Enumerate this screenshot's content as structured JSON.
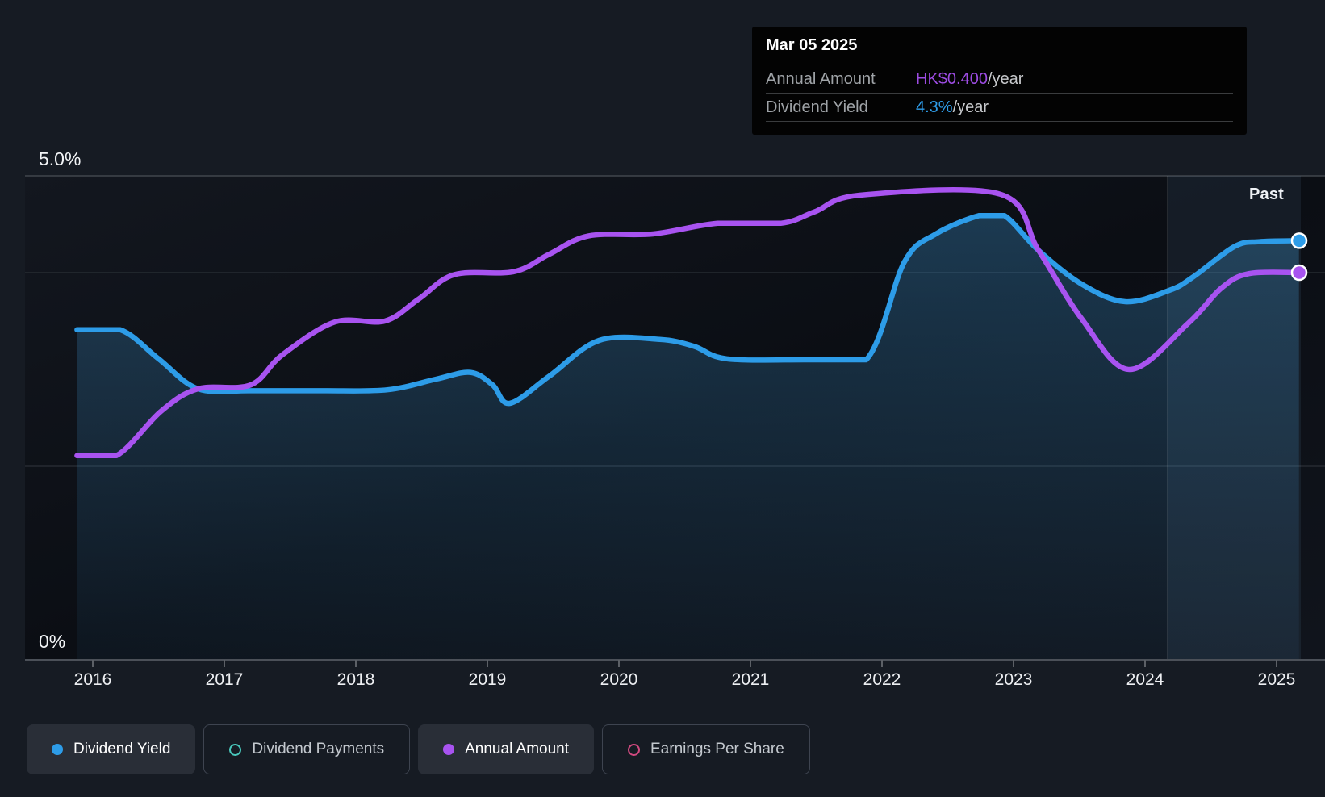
{
  "tooltip": {
    "date": "Mar 05 2025",
    "rows": [
      {
        "label": "Annual Amount",
        "value": "HK$0.400",
        "suffix": "/year",
        "value_color": "#9d4ce3"
      },
      {
        "label": "Dividend Yield",
        "value": "4.3%",
        "suffix": "/year",
        "value_color": "#2f9ce8"
      }
    ]
  },
  "past_label": "Past",
  "axis": {
    "y_top_label": "5.0%",
    "y_bottom_label": "0%",
    "x_labels": [
      "2016",
      "2017",
      "2018",
      "2019",
      "2020",
      "2021",
      "2022",
      "2023",
      "2024",
      "2025"
    ]
  },
  "legend": {
    "items": [
      {
        "label": "Dividend Yield",
        "color": "#2d9ce8",
        "active": true,
        "filled": true
      },
      {
        "label": "Dividend Payments",
        "color": "#49c8bc",
        "active": false,
        "filled": false
      },
      {
        "label": "Annual Amount",
        "color": "#a853f0",
        "active": true,
        "filled": true
      },
      {
        "label": "Earnings Per Share",
        "color": "#d1497f",
        "active": false,
        "filled": false
      }
    ]
  },
  "colors": {
    "background": "#161b23",
    "plot_top": "#13171f",
    "plot_bottom": "#0b0e14",
    "grid_bright": "#41464d",
    "grid_faint": "#2b3037",
    "axis_line": "#4b5058",
    "blue": "#2d9ce8",
    "purple": "#a853f0",
    "fill_blue": "rgba(58,140,196,0.34)",
    "past_band": "rgba(120,175,225,0.09)"
  },
  "chart_data": {
    "type": "line",
    "title": "Dividend history (tooltip at Mar 05 2025: Annual Amount HK$0.400/year, Dividend Yield 4.3%/year)",
    "x_range": [
      2015.88,
      2025.18
    ],
    "x_tick_years": [
      2016,
      2017,
      2018,
      2019,
      2020,
      2021,
      2022,
      2023,
      2024,
      2025
    ],
    "yield_axis": {
      "label_max": "5.0%",
      "label_min": "0%",
      "ylim_pct": [
        0,
        5.0
      ],
      "gridlines_pct": [
        5.0,
        4.0,
        2.0
      ]
    },
    "amount_axis": {
      "unit": "HK$",
      "ylim": [
        0,
        0.5
      ]
    },
    "past_band_years": [
      2024.17,
      2025.18
    ],
    "legend_position": "bottom",
    "series": [
      {
        "name": "Dividend Yield",
        "axis": "yield",
        "unit": "%",
        "color": "#2d9ce8",
        "fill": true,
        "endpoint_dot": true,
        "points": [
          [
            2015.88,
            3.41
          ],
          [
            2016.21,
            3.41
          ],
          [
            2016.5,
            3.11
          ],
          [
            2016.8,
            2.8
          ],
          [
            2017.2,
            2.78
          ],
          [
            2017.75,
            2.78
          ],
          [
            2018.24,
            2.79
          ],
          [
            2018.61,
            2.9
          ],
          [
            2018.87,
            2.97
          ],
          [
            2019.04,
            2.84
          ],
          [
            2019.17,
            2.65
          ],
          [
            2019.47,
            2.93
          ],
          [
            2019.85,
            3.3
          ],
          [
            2020.31,
            3.31
          ],
          [
            2020.57,
            3.24
          ],
          [
            2020.82,
            3.11
          ],
          [
            2021.43,
            3.1
          ],
          [
            2021.88,
            3.1
          ],
          [
            2022.17,
            4.11
          ],
          [
            2022.41,
            4.4
          ],
          [
            2022.74,
            4.59
          ],
          [
            2022.93,
            4.59
          ],
          [
            2023.19,
            4.23
          ],
          [
            2023.52,
            3.88
          ],
          [
            2023.85,
            3.7
          ],
          [
            2024.19,
            3.82
          ],
          [
            2024.37,
            3.96
          ],
          [
            2024.68,
            4.27
          ],
          [
            2024.87,
            4.32
          ],
          [
            2025.17,
            4.33
          ]
        ]
      },
      {
        "name": "Annual Amount",
        "axis": "amount",
        "unit": "HK$/year",
        "color": "#a853f0",
        "fill": false,
        "endpoint_dot": true,
        "points": [
          [
            2015.88,
            0.211
          ],
          [
            2016.18,
            0.211
          ],
          [
            2016.52,
            0.257
          ],
          [
            2016.8,
            0.28
          ],
          [
            2017.2,
            0.284
          ],
          [
            2017.44,
            0.315
          ],
          [
            2017.84,
            0.349
          ],
          [
            2018.22,
            0.35
          ],
          [
            2018.48,
            0.373
          ],
          [
            2018.75,
            0.398
          ],
          [
            2019.2,
            0.401
          ],
          [
            2019.47,
            0.419
          ],
          [
            2019.77,
            0.438
          ],
          [
            2020.26,
            0.44
          ],
          [
            2020.75,
            0.451
          ],
          [
            2021.23,
            0.451
          ],
          [
            2021.49,
            0.463
          ],
          [
            2021.83,
            0.48
          ],
          [
            2022.9,
            0.481
          ],
          [
            2023.19,
            0.423
          ],
          [
            2023.52,
            0.352
          ],
          [
            2023.88,
            0.3
          ],
          [
            2024.33,
            0.348
          ],
          [
            2024.58,
            0.384
          ],
          [
            2024.79,
            0.399
          ],
          [
            2025.17,
            0.4
          ]
        ]
      }
    ],
    "hidden_series": [
      "Dividend Payments",
      "Earnings Per Share"
    ]
  }
}
